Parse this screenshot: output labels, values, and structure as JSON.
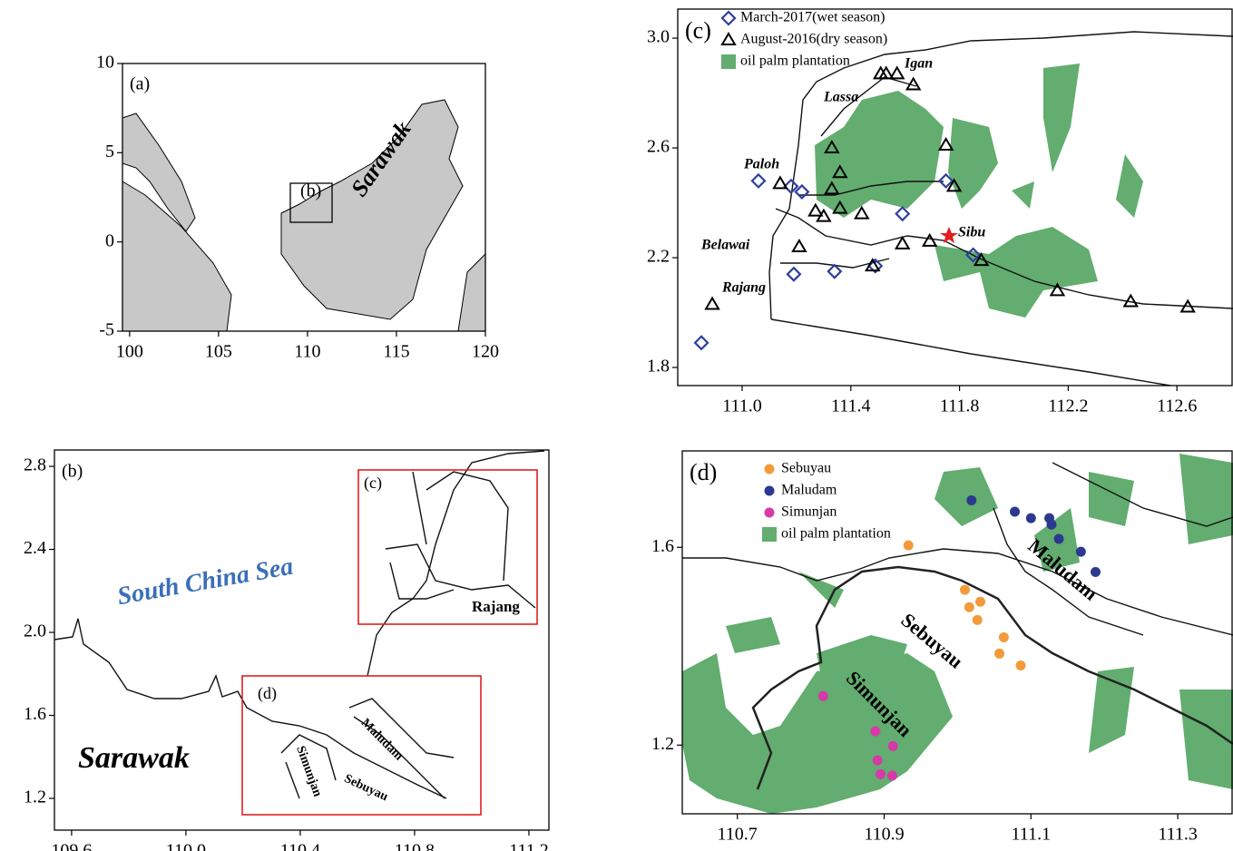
{
  "chart_data": [
    {
      "type": "map",
      "label": "(a)",
      "annotations": [
        "(b)",
        "Sarawak"
      ],
      "xlim": [
        99.6,
        120
      ],
      "ylim": [
        -5,
        10
      ],
      "xticks": [
        100,
        105,
        110,
        115,
        120
      ],
      "yticks": [
        -5,
        0,
        5,
        10
      ]
    },
    {
      "type": "map",
      "label": "(b)",
      "annotations": [
        "(c)",
        "(d)",
        "South China Sea",
        "Sarawak",
        "Rajang",
        "Maludam",
        "Simunjan",
        "Sebuyau"
      ],
      "xlim": [
        109.54,
        111.27
      ],
      "ylim": [
        1.047,
        2.879
      ],
      "xticks": [
        109.6,
        {
          "value": 110,
          "label": "110.0"
        },
        110.4,
        110.8,
        111.2
      ],
      "yticks": [
        2.8,
        2.4,
        {
          "value": 2,
          "label": "2.0"
        },
        1.6,
        1.2
      ]
    },
    {
      "type": "map",
      "label": "(c)",
      "annotations": [
        "Igan",
        "Lassa",
        "Paloh",
        "Belawai",
        "Rajang",
        "Sibu"
      ],
      "xlim": [
        110.763,
        112.803
      ],
      "ylim": [
        1.734,
        3.106
      ],
      "xticks": [
        {
          "value": 111,
          "label": "111.0"
        },
        111.4,
        111.8,
        112.2,
        112.6
      ],
      "yticks": [
        {
          "value": 3,
          "label": "3.0"
        },
        2.6,
        2.2,
        1.8
      ],
      "series": [
        {
          "name": "March-2017(wet season)",
          "color": "#2e3f9e",
          "marker": "diamond",
          "x": [
            111.06,
            110.85,
            111.19,
            111.18,
            111.22,
            111.34,
            111.49,
            111.59,
            111.75,
            111.85
          ],
          "values": [
            2.48,
            1.89,
            2.14,
            2.46,
            2.44,
            2.15,
            2.17,
            2.36,
            2.48,
            2.21
          ]
        },
        {
          "name": "August-2016(dry season)",
          "color": "#000000",
          "marker": "triangle",
          "x": [
            110.89,
            111.14,
            111.21,
            111.27,
            111.3,
            111.33,
            111.36,
            111.33,
            111.36,
            111.44,
            111.48,
            111.51,
            111.53,
            111.57,
            111.63,
            111.59,
            111.69,
            111.75,
            111.78,
            111.88,
            112.16,
            112.43,
            112.64
          ],
          "values": [
            2.03,
            2.47,
            2.24,
            2.37,
            2.35,
            2.6,
            2.51,
            2.45,
            2.38,
            2.36,
            2.17,
            2.87,
            2.87,
            2.87,
            2.83,
            2.25,
            2.26,
            2.61,
            2.46,
            2.19,
            2.08,
            2.04,
            2.02
          ]
        }
      ],
      "plantation": {
        "name": "oil palm plantation",
        "color": "#62ad6f"
      }
    },
    {
      "type": "map",
      "label": "(d)",
      "annotations": [
        "Maludam",
        "Sebuyau",
        "Simunjan"
      ],
      "xlim": [
        110.625,
        111.374
      ],
      "ylim": [
        1.061,
        1.795
      ],
      "xticks": [
        110.7,
        110.9,
        111.1,
        111.3
      ],
      "yticks": [
        1.6,
        1.2
      ],
      "series": [
        {
          "name": "Sebuyau",
          "color": "#f39a3a",
          "marker": "circle",
          "x": [
            110.933,
            111.01,
            111.031,
            111.016,
            111.027,
            111.063,
            111.057,
            111.086
          ],
          "values": [
            1.604,
            1.514,
            1.49,
            1.479,
            1.453,
            1.418,
            1.385,
            1.361
          ]
        },
        {
          "name": "Maludam",
          "color": "#2b3a8f",
          "marker": "circle",
          "x": [
            111.019,
            111.078,
            111.1,
            111.125,
            111.128,
            111.138,
            111.168,
            111.188
          ],
          "values": [
            1.695,
            1.672,
            1.659,
            1.659,
            1.646,
            1.617,
            1.591,
            1.55
          ]
        },
        {
          "name": "Simunjan",
          "color": "#d63aa8",
          "marker": "circle",
          "x": [
            110.817,
            110.888,
            110.912,
            110.891,
            110.895,
            110.911
          ],
          "values": [
            1.299,
            1.228,
            1.198,
            1.169,
            1.141,
            1.138
          ]
        }
      ],
      "plantation": {
        "name": "oil palm plantation",
        "color": "#62ad6f"
      }
    }
  ]
}
